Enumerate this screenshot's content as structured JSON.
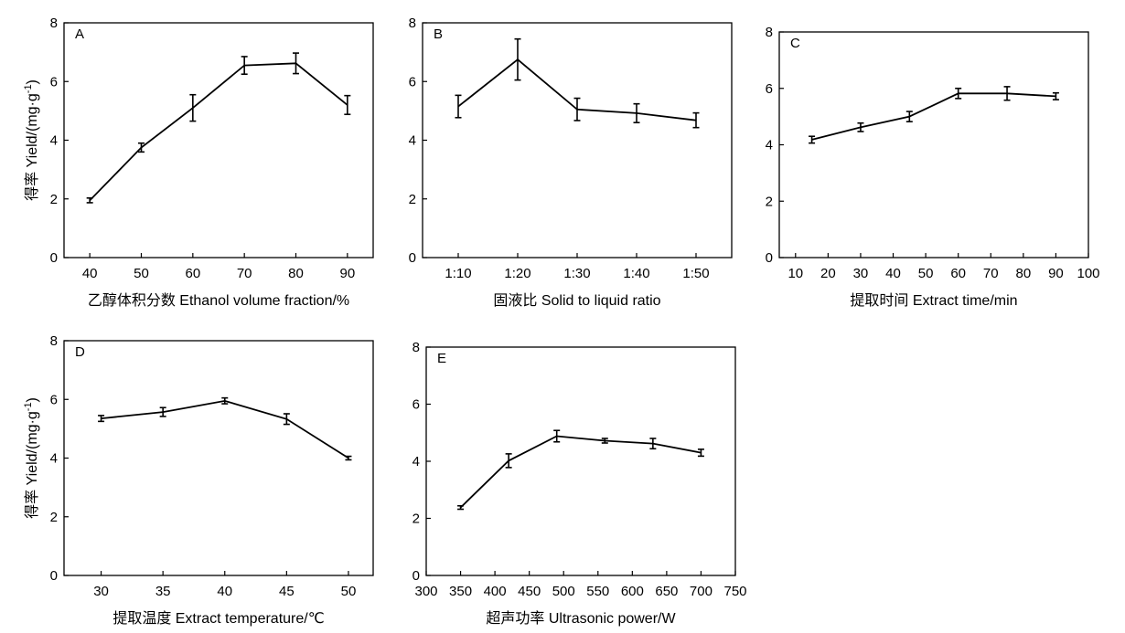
{
  "chart_data": [
    {
      "panel": "A",
      "type": "line",
      "xlabel": "乙醇体积分数 Ethanol volume fraction/%",
      "ylabel": "得率 Yield/(mg·g",
      "ylabel_sup": "-1",
      "ylabel_end": ")",
      "x": [
        40,
        50,
        60,
        70,
        80,
        90
      ],
      "x_ticks": [
        40,
        50,
        60,
        70,
        80,
        90
      ],
      "xlim": [
        35,
        95
      ],
      "values": [
        1.95,
        3.75,
        5.1,
        6.55,
        6.62,
        5.2
      ],
      "errors": [
        0.08,
        0.15,
        0.45,
        0.3,
        0.35,
        0.32
      ],
      "ylim": [
        0,
        8
      ],
      "y_ticks": [
        0,
        2,
        4,
        6,
        8
      ]
    },
    {
      "panel": "B",
      "type": "line",
      "xlabel": "固液比 Solid to liquid ratio",
      "ylabel": "",
      "categories": [
        "1:10",
        "1:20",
        "1:30",
        "1:40",
        "1:50"
      ],
      "values": [
        5.15,
        6.75,
        5.05,
        4.92,
        4.68
      ],
      "errors": [
        0.38,
        0.7,
        0.38,
        0.32,
        0.25
      ],
      "ylim": [
        0,
        8
      ],
      "y_ticks": [
        0,
        2,
        4,
        6,
        8
      ]
    },
    {
      "panel": "C",
      "type": "line",
      "xlabel": "提取时间 Extract time/min",
      "ylabel": "",
      "x": [
        15,
        30,
        45,
        60,
        75,
        90
      ],
      "x_ticks": [
        10,
        20,
        30,
        40,
        50,
        60,
        70,
        80,
        90,
        100
      ],
      "xlim": [
        5,
        100
      ],
      "values": [
        4.18,
        4.62,
        5.0,
        5.82,
        5.82,
        5.72
      ],
      "errors": [
        0.12,
        0.15,
        0.18,
        0.18,
        0.24,
        0.12
      ],
      "ylim": [
        0,
        8
      ],
      "y_ticks": [
        0,
        2,
        4,
        6,
        8
      ]
    },
    {
      "panel": "D",
      "type": "line",
      "xlabel": "提取温度 Extract temperature/℃",
      "ylabel": "得率 Yield/(mg·g",
      "ylabel_sup": "-1",
      "ylabel_end": ")",
      "x": [
        30,
        35,
        40,
        45,
        50
      ],
      "x_ticks": [
        30,
        35,
        40,
        45,
        50
      ],
      "xlim": [
        27,
        52
      ],
      "values": [
        5.35,
        5.57,
        5.95,
        5.33,
        4.0
      ],
      "errors": [
        0.1,
        0.15,
        0.1,
        0.18,
        0.06
      ],
      "ylim": [
        0,
        8
      ],
      "y_ticks": [
        0,
        2,
        4,
        6,
        8
      ]
    },
    {
      "panel": "E",
      "type": "line",
      "xlabel": "超声功率 Ultrasonic power/W",
      "ylabel": "",
      "x": [
        350,
        420,
        490,
        560,
        630,
        700
      ],
      "x_ticks": [
        300,
        350,
        400,
        450,
        500,
        550,
        600,
        650,
        700,
        750
      ],
      "xlim": [
        300,
        750
      ],
      "values": [
        2.38,
        4.02,
        4.88,
        4.72,
        4.62,
        4.3
      ],
      "errors": [
        0.06,
        0.24,
        0.2,
        0.08,
        0.18,
        0.12
      ],
      "ylim": [
        0,
        8
      ],
      "y_ticks": [
        0,
        2,
        4,
        6,
        8
      ]
    }
  ]
}
